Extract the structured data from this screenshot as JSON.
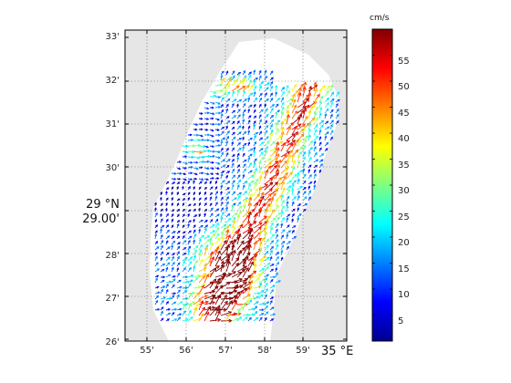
{
  "chart_data": {
    "type": "quiver",
    "x_ticks": [
      "55'",
      "56'",
      "57'",
      "58'",
      "59'"
    ],
    "x_corner_label": "35 °E",
    "y_ticks": [
      "26'",
      "27'",
      "28'",
      "29.00'",
      "30'",
      "31'",
      "32'",
      "33'"
    ],
    "y_degree_label": "29 °N",
    "colorbar": {
      "unit": "cm/s",
      "range": [
        0,
        60
      ],
      "ticks": [
        "5",
        "10",
        "15",
        "20",
        "25",
        "30",
        "35",
        "40",
        "45",
        "50",
        "55"
      ]
    },
    "grid": true
  }
}
